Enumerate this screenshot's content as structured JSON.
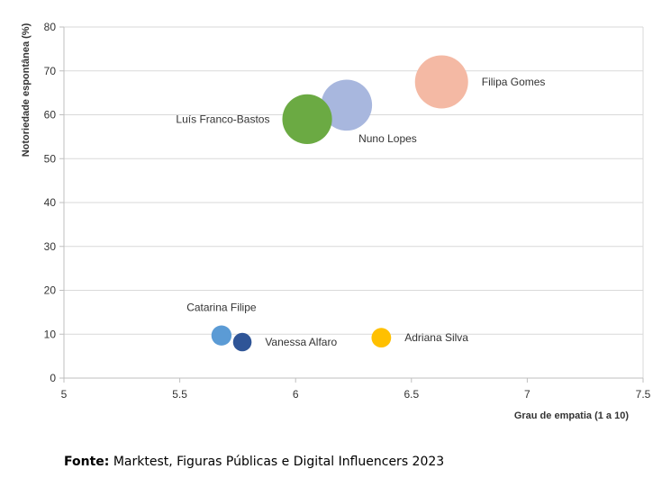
{
  "chart_data": {
    "type": "scatter",
    "bubble": true,
    "xlabel": "Grau de empatia (1 a 10)",
    "ylabel": "Notoriedade espontânea (%)",
    "xlim": [
      5,
      7.5
    ],
    "ylim": [
      0,
      80
    ],
    "xticks": [
      "5",
      "5.5",
      "6",
      "6.5",
      "7",
      "7.5"
    ],
    "yticks": [
      "0",
      "10",
      "20",
      "30",
      "40",
      "50",
      "60",
      "70",
      "80"
    ],
    "grid": "horizontal",
    "legend": "none",
    "points": [
      {
        "label": "Filipa Gomes",
        "x": 6.63,
        "y": 67.5,
        "size": 67.5,
        "color": "#F4B9A4"
      },
      {
        "label": "Nuno Lopes",
        "x": 6.22,
        "y": 62.2,
        "size": 62.2,
        "color": "#A8B7DE"
      },
      {
        "label": "Luís Franco-Bastos",
        "x": 6.05,
        "y": 59.0,
        "size": 59.0,
        "color": "#6BAA43"
      },
      {
        "label": "Catarina Filipe",
        "x": 5.68,
        "y": 9.7,
        "size": 9.7,
        "color": "#5B9BD5"
      },
      {
        "label": "Vanessa Alfaro",
        "x": 5.77,
        "y": 8.2,
        "size": 8.2,
        "color": "#2F5597"
      },
      {
        "label": "Adriana Silva",
        "x": 6.37,
        "y": 9.2,
        "size": 9.2,
        "color": "#FFC000"
      }
    ]
  },
  "source": {
    "label": "Fonte:",
    "text": " Marktest, Figuras Públicas e Digital Influencers 2023"
  }
}
